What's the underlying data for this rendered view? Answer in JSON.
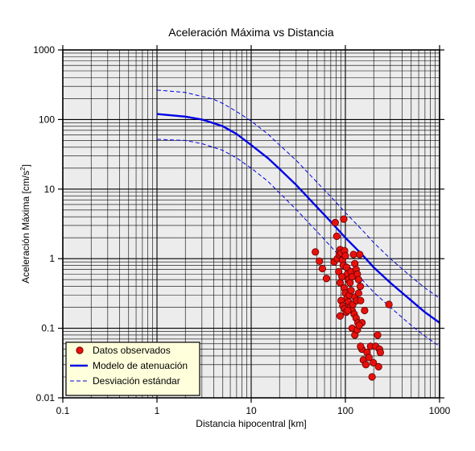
{
  "chart_data": {
    "type": "scatter",
    "title": "Aceleración Máxima vs Distancia",
    "xlabel": "Distancia hipocentral [km]",
    "ylabel_main": "Aceleración Máxima [cm/s",
    "ylabel_sup": "2",
    "ylabel_end": "]",
    "xscale": "log",
    "yscale": "log",
    "xlim": [
      0.1,
      1000
    ],
    "ylim": [
      0.01,
      1000
    ],
    "xticks": [
      0.1,
      1,
      10,
      100,
      1000
    ],
    "xtick_labels": [
      "0.1",
      "1",
      "10",
      "100",
      "1000"
    ],
    "yticks": [
      0.01,
      0.1,
      1,
      10,
      100,
      1000
    ],
    "ytick_labels": [
      "0.01",
      "0.1",
      "1",
      "10",
      "100",
      "1000"
    ],
    "grid": true,
    "legend_position": "bottom-left",
    "colors": {
      "plot_background": "#ececec",
      "grid": "#000000",
      "points_fill": "#e8100c",
      "points_stroke": "#5a0000",
      "model_line": "#0000e6",
      "deviation_line": "#0000e6",
      "legend_background": "#ffffdc"
    },
    "series": [
      {
        "name": "Datos observados",
        "kind": "scatter",
        "points": [
          [
            48,
            1.25
          ],
          [
            53,
            0.92
          ],
          [
            57,
            0.72
          ],
          [
            63,
            0.52
          ],
          [
            78,
            3.3
          ],
          [
            96,
            3.7
          ],
          [
            81,
            2.1
          ],
          [
            76,
            0.9
          ],
          [
            82,
            1.0
          ],
          [
            86,
            1.15
          ],
          [
            88,
            1.35
          ],
          [
            90,
            1.2
          ],
          [
            93,
            0.95
          ],
          [
            95,
            0.8
          ],
          [
            98,
            1.3
          ],
          [
            100,
            1.1
          ],
          [
            103,
            0.75
          ],
          [
            105,
            0.6
          ],
          [
            108,
            0.5
          ],
          [
            112,
            0.45
          ],
          [
            115,
            0.65
          ],
          [
            118,
            0.55
          ],
          [
            122,
            1.15
          ],
          [
            126,
            0.85
          ],
          [
            130,
            0.7
          ],
          [
            134,
            0.6
          ],
          [
            138,
            0.5
          ],
          [
            142,
            1.15
          ],
          [
            85,
            0.65
          ],
          [
            88,
            0.45
          ],
          [
            92,
            0.55
          ],
          [
            97,
            0.38
          ],
          [
            100,
            0.32
          ],
          [
            104,
            0.27
          ],
          [
            108,
            0.24
          ],
          [
            112,
            0.2
          ],
          [
            118,
            0.18
          ],
          [
            124,
            0.16
          ],
          [
            130,
            0.14
          ],
          [
            136,
            0.12
          ],
          [
            90,
            0.25
          ],
          [
            94,
            0.21
          ],
          [
            98,
            0.19
          ],
          [
            102,
            0.17
          ],
          [
            106,
            0.18
          ],
          [
            110,
            0.3
          ],
          [
            115,
            0.35
          ],
          [
            120,
            0.22
          ],
          [
            126,
            0.28
          ],
          [
            132,
            0.25
          ],
          [
            138,
            0.32
          ],
          [
            144,
            0.4
          ],
          [
            150,
            0.12
          ],
          [
            88,
            0.15
          ],
          [
            118,
            0.1
          ],
          [
            126,
            0.08
          ],
          [
            134,
            0.095
          ],
          [
            140,
            0.11
          ],
          [
            160,
            0.18
          ],
          [
            145,
            0.25
          ],
          [
            150,
            0.05
          ],
          [
            155,
            0.035
          ],
          [
            165,
            0.03
          ],
          [
            170,
            0.045
          ],
          [
            178,
            0.038
          ],
          [
            185,
            0.055
          ],
          [
            192,
            0.02
          ],
          [
            198,
            0.032
          ],
          [
            210,
            0.055
          ],
          [
            220,
            0.08
          ],
          [
            225,
            0.028
          ],
          [
            230,
            0.05
          ],
          [
            235,
            0.045
          ],
          [
            290,
            0.22
          ],
          [
            145,
            0.055
          ]
        ]
      },
      {
        "name": "Modelo de atenuación",
        "kind": "line",
        "points": [
          [
            1,
            120
          ],
          [
            2,
            110
          ],
          [
            3,
            100
          ],
          [
            5,
            80
          ],
          [
            7,
            62
          ],
          [
            10,
            43
          ],
          [
            15,
            28
          ],
          [
            20,
            19.5
          ],
          [
            30,
            11.5
          ],
          [
            50,
            5.5
          ],
          [
            70,
            3.4
          ],
          [
            100,
            2.0
          ],
          [
            150,
            1.15
          ],
          [
            200,
            0.75
          ],
          [
            300,
            0.45
          ],
          [
            500,
            0.25
          ],
          [
            700,
            0.17
          ],
          [
            1000,
            0.12
          ]
        ]
      },
      {
        "name": "Desviación estándar",
        "kind": "dashed-line",
        "upper": [
          [
            1,
            265
          ],
          [
            2,
            245
          ],
          [
            3,
            215
          ],
          [
            4,
            195
          ],
          [
            5,
            170
          ],
          [
            7,
            130
          ],
          [
            10,
            95
          ],
          [
            15,
            62
          ],
          [
            20,
            43
          ],
          [
            30,
            26
          ],
          [
            50,
            12.5
          ],
          [
            70,
            7.8
          ],
          [
            100,
            4.6
          ],
          [
            150,
            2.6
          ],
          [
            200,
            1.7
          ],
          [
            300,
            1.0
          ],
          [
            500,
            0.55
          ],
          [
            700,
            0.38
          ],
          [
            1000,
            0.27
          ]
        ],
        "lower": [
          [
            1,
            52
          ],
          [
            2,
            50
          ],
          [
            3,
            45
          ],
          [
            5,
            36
          ],
          [
            7,
            28
          ],
          [
            10,
            20
          ],
          [
            15,
            13
          ],
          [
            20,
            8.8
          ],
          [
            30,
            5.1
          ],
          [
            50,
            2.45
          ],
          [
            70,
            1.5
          ],
          [
            100,
            0.88
          ],
          [
            150,
            0.5
          ],
          [
            200,
            0.33
          ],
          [
            300,
            0.2
          ],
          [
            500,
            0.11
          ],
          [
            700,
            0.077
          ],
          [
            1000,
            0.055
          ]
        ]
      }
    ]
  }
}
